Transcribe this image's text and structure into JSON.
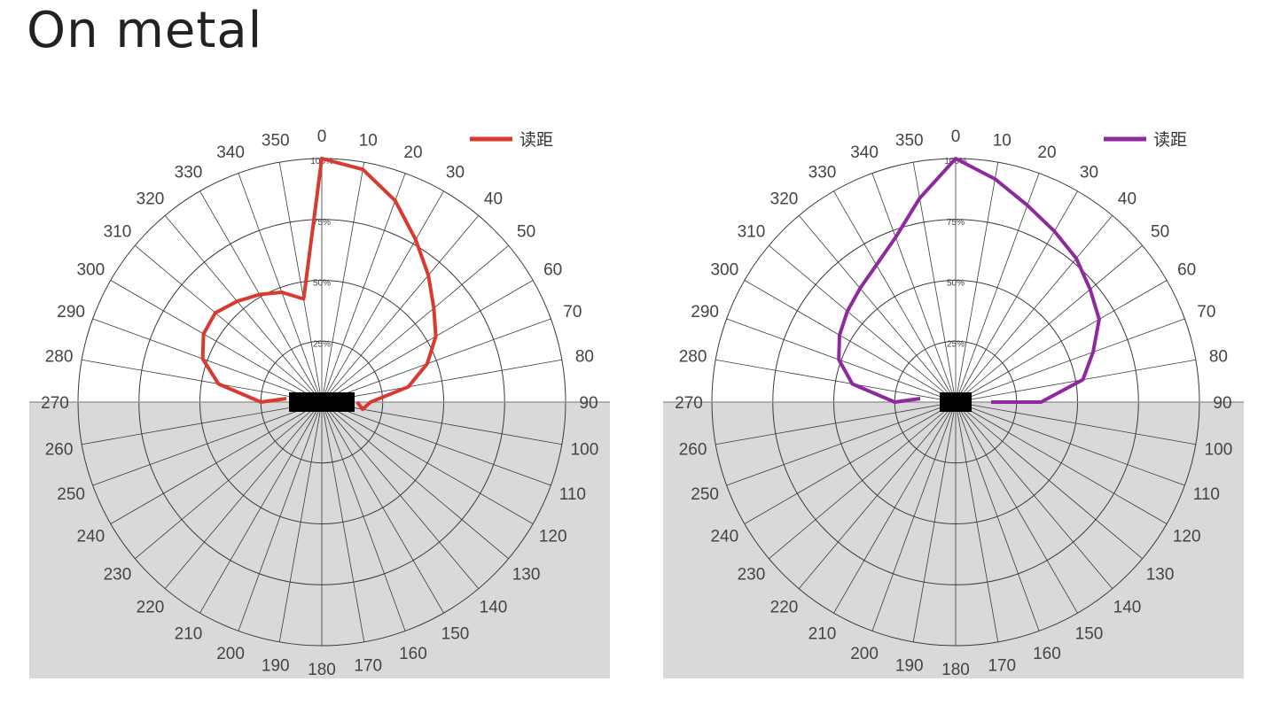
{
  "title": "On metal",
  "chart_data": [
    {
      "type": "polar-line",
      "legend": {
        "label": "读距",
        "position": "top-right"
      },
      "color": "#d93a30",
      "angle_ticks": [
        0,
        10,
        20,
        30,
        40,
        50,
        60,
        70,
        80,
        90,
        100,
        110,
        120,
        130,
        140,
        150,
        160,
        170,
        180,
        190,
        200,
        210,
        220,
        230,
        240,
        250,
        260,
        270,
        280,
        290,
        300,
        310,
        320,
        330,
        340,
        350
      ],
      "ring_labels": [
        "25%",
        "50%",
        "75%",
        "100%"
      ],
      "shaded_half": "lower",
      "series": [
        {
          "name": "读距",
          "angles": [
            270,
            280,
            290,
            300,
            310,
            320,
            330,
            340,
            350,
            0,
            10,
            20,
            30,
            40,
            50,
            60,
            70,
            80,
            90,
            100
          ],
          "values": [
            25,
            43,
            52,
            56,
            57,
            54,
            51,
            48,
            43,
            100,
            97,
            88,
            77,
            68,
            60,
            54,
            46,
            36,
            20,
            17
          ]
        }
      ]
    },
    {
      "type": "polar-line",
      "legend": {
        "label": "读距",
        "position": "top-right"
      },
      "color": "#8e2a9e",
      "angle_ticks": [
        0,
        10,
        20,
        30,
        40,
        50,
        60,
        70,
        80,
        90,
        100,
        110,
        120,
        130,
        140,
        150,
        160,
        170,
        180,
        190,
        200,
        210,
        220,
        230,
        240,
        250,
        260,
        270,
        280,
        290,
        300,
        310,
        320,
        330,
        340,
        350
      ],
      "ring_labels": [
        "25%",
        "50%",
        "75%",
        "100%"
      ],
      "shaded_half": "lower",
      "series": [
        {
          "name": "读距",
          "angles": [
            270,
            280,
            290,
            300,
            310,
            320,
            330,
            340,
            350,
            0,
            10,
            20,
            30,
            40,
            50,
            60,
            70,
            80,
            90
          ],
          "values": [
            25,
            43,
            51,
            55,
            58,
            61,
            65,
            72,
            85,
            100,
            93,
            86,
            81,
            77,
            72,
            68,
            60,
            53,
            35
          ]
        }
      ]
    }
  ]
}
